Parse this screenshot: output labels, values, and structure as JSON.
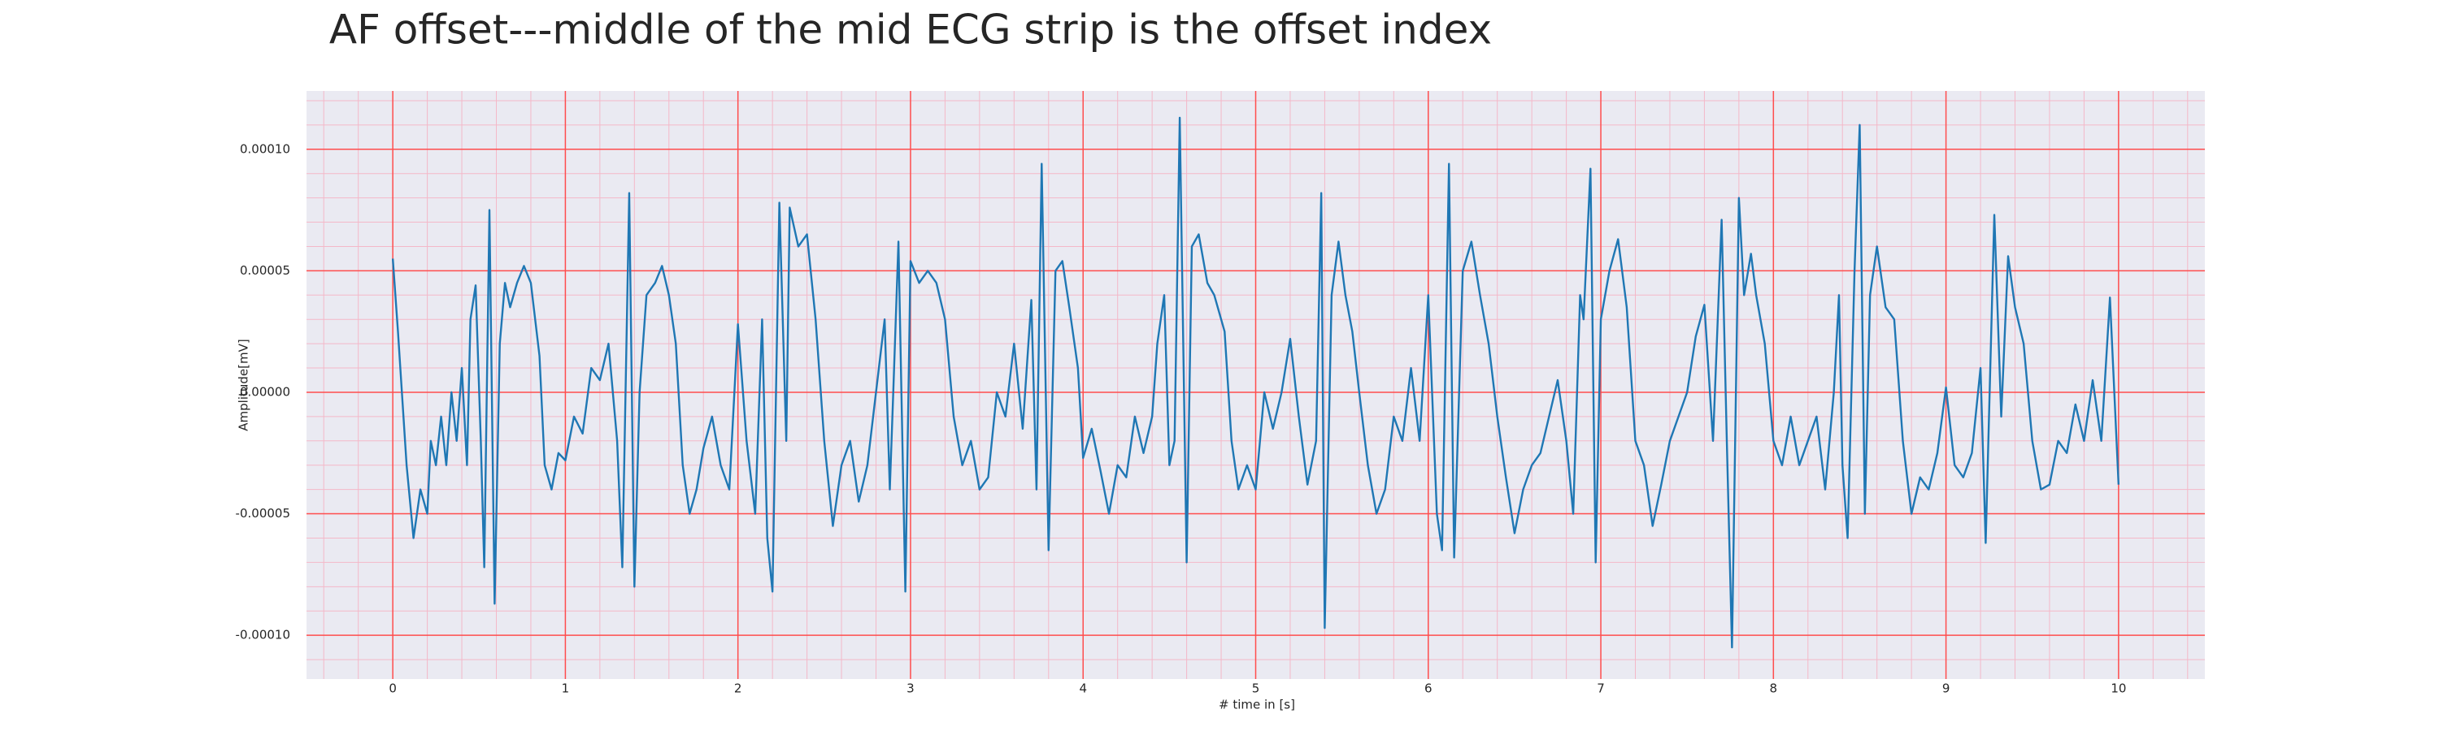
{
  "chart_data": {
    "type": "line",
    "title": "AF offset---middle of the mid ECG strip is the offset index",
    "xlabel": "# time in [s]",
    "ylabel": "Amplitude[mV]",
    "color": "#1f77b4",
    "background": "#eaeaf2",
    "grid": true,
    "grid_color": "#ff4d4d",
    "minor_grid": true,
    "minor_grid_color": "#f4b8c8",
    "xlim": [
      -0.5,
      10.5
    ],
    "xticks": [
      0,
      1,
      2,
      3,
      4,
      5,
      6,
      7,
      8,
      9,
      10
    ],
    "ylim": [
      -0.000118,
      0.000124
    ],
    "yticks": [
      {
        "value": -0.0001,
        "label": "-0.00010"
      },
      {
        "value": -5e-05,
        "label": "-0.00005"
      },
      {
        "value": 0,
        "label": "0.00000"
      },
      {
        "value": 5e-05,
        "label": "0.00005"
      },
      {
        "value": 0.0001,
        "label": "0.00010"
      }
    ],
    "x": [
      0,
      0.03,
      0.08,
      0.12,
      0.16,
      0.2,
      0.22,
      0.25,
      0.28,
      0.31,
      0.34,
      0.37,
      0.4,
      0.43,
      0.45,
      0.48,
      0.51,
      0.53,
      0.56,
      0.59,
      0.62,
      0.65,
      0.68,
      0.72,
      0.76,
      0.8,
      0.85,
      0.88,
      0.92,
      0.96,
      1.0,
      1.05,
      1.1,
      1.15,
      1.2,
      1.25,
      1.3,
      1.33,
      1.37,
      1.4,
      1.43,
      1.47,
      1.52,
      1.56,
      1.6,
      1.64,
      1.68,
      1.72,
      1.76,
      1.8,
      1.85,
      1.9,
      1.95,
      2.0,
      2.05,
      2.1,
      2.14,
      2.17,
      2.2,
      2.24,
      2.28,
      2.3,
      2.35,
      2.4,
      2.45,
      2.5,
      2.55,
      2.6,
      2.65,
      2.7,
      2.75,
      2.8,
      2.85,
      2.88,
      2.9,
      2.93,
      2.97,
      3.0,
      3.05,
      3.1,
      3.15,
      3.2,
      3.25,
      3.3,
      3.35,
      3.4,
      3.45,
      3.5,
      3.55,
      3.6,
      3.65,
      3.7,
      3.73,
      3.76,
      3.8,
      3.84,
      3.88,
      3.92,
      3.97,
      4.0,
      4.05,
      4.1,
      4.15,
      4.2,
      4.25,
      4.3,
      4.35,
      4.4,
      4.43,
      4.47,
      4.5,
      4.53,
      4.56,
      4.6,
      4.63,
      4.67,
      4.72,
      4.76,
      4.82,
      4.86,
      4.9,
      4.95,
      5.0,
      5.05,
      5.1,
      5.15,
      5.2,
      5.25,
      5.3,
      5.35,
      5.38,
      5.4,
      5.44,
      5.48,
      5.52,
      5.56,
      5.6,
      5.65,
      5.7,
      5.75,
      5.8,
      5.85,
      5.9,
      5.95,
      6.0,
      6.05,
      6.08,
      6.12,
      6.15,
      6.2,
      6.25,
      6.3,
      6.35,
      6.4,
      6.45,
      6.5,
      6.55,
      6.6,
      6.65,
      6.7,
      6.75,
      6.8,
      6.84,
      6.88,
      6.9,
      6.94,
      6.97,
      7.0,
      7.05,
      7.1,
      7.15,
      7.2,
      7.25,
      7.3,
      7.35,
      7.4,
      7.45,
      7.5,
      7.55,
      7.6,
      7.65,
      7.7,
      7.73,
      7.76,
      7.8,
      7.83,
      7.87,
      7.9,
      7.95,
      8.0,
      8.05,
      8.1,
      8.15,
      8.2,
      8.25,
      8.3,
      8.35,
      8.38,
      8.4,
      8.43,
      8.47,
      8.5,
      8.53,
      8.56,
      8.6,
      8.65,
      8.7,
      8.75,
      8.8,
      8.85,
      8.9,
      8.95,
      9.0,
      9.05,
      9.1,
      9.15,
      9.2,
      9.23,
      9.28,
      9.32,
      9.36,
      9.4,
      9.45,
      9.5,
      9.55,
      9.6,
      9.65,
      9.7,
      9.75,
      9.8,
      9.85,
      9.9,
      9.95,
      10.0
    ],
    "values": [
      5.5e-05,
      2.5e-05,
      -3e-05,
      -6e-05,
      -4e-05,
      -5e-05,
      -2e-05,
      -3e-05,
      -1e-05,
      -3e-05,
      0,
      -2e-05,
      1e-05,
      -3e-05,
      3e-05,
      4.4e-05,
      -2e-05,
      -7.2e-05,
      7.5e-05,
      -8.7e-05,
      2e-05,
      4.5e-05,
      3.5e-05,
      4.5e-05,
      5.2e-05,
      4.5e-05,
      1.5e-05,
      -3e-05,
      -4e-05,
      -2.5e-05,
      -2.8e-05,
      -1e-05,
      -1.7e-05,
      1e-05,
      5e-06,
      2e-05,
      -2e-05,
      -7.2e-05,
      8.2e-05,
      -8e-05,
      0,
      4e-05,
      4.5e-05,
      5.2e-05,
      4e-05,
      2e-05,
      -3e-05,
      -5e-05,
      -4e-05,
      -2.3e-05,
      -1e-05,
      -3e-05,
      -4e-05,
      2.8e-05,
      -2e-05,
      -5e-05,
      3e-05,
      -6e-05,
      -8.2e-05,
      7.8e-05,
      -2e-05,
      7.6e-05,
      6e-05,
      6.5e-05,
      3e-05,
      -2e-05,
      -5.5e-05,
      -3e-05,
      -2e-05,
      -4.5e-05,
      -3e-05,
      0,
      3e-05,
      -4e-05,
      0,
      6.2e-05,
      -8.2e-05,
      5.4e-05,
      4.5e-05,
      5e-05,
      4.5e-05,
      3e-05,
      -1e-05,
      -3e-05,
      -2e-05,
      -4e-05,
      -3.5e-05,
      0,
      -1e-05,
      2e-05,
      -1.5e-05,
      3.8e-05,
      -4e-05,
      9.4e-05,
      -6.5e-05,
      5e-05,
      5.4e-05,
      3.5e-05,
      1e-05,
      -2.7e-05,
      -1.5e-05,
      -3.2e-05,
      -5e-05,
      -3e-05,
      -3.5e-05,
      -1e-05,
      -2.5e-05,
      -1e-05,
      2e-05,
      4e-05,
      -3e-05,
      -2e-05,
      0.000113,
      -7e-05,
      6e-05,
      6.5e-05,
      4.5e-05,
      4e-05,
      2.5e-05,
      -2e-05,
      -4e-05,
      -3e-05,
      -4e-05,
      0,
      -1.5e-05,
      0,
      2.2e-05,
      -1e-05,
      -3.8e-05,
      -2e-05,
      8.2e-05,
      -9.7e-05,
      4e-05,
      6.2e-05,
      4e-05,
      2.5e-05,
      0,
      -3e-05,
      -5e-05,
      -4e-05,
      -1e-05,
      -2e-05,
      1e-05,
      -2e-05,
      4e-05,
      -5e-05,
      -6.5e-05,
      9.4e-05,
      -6.8e-05,
      5e-05,
      6.2e-05,
      4e-05,
      2e-05,
      -1e-05,
      -3.5e-05,
      -5.8e-05,
      -4e-05,
      -3e-05,
      -2.5e-05,
      -1e-05,
      5e-06,
      -2e-05,
      -5e-05,
      4e-05,
      3e-05,
      9.2e-05,
      -7e-05,
      3e-05,
      5e-05,
      6.3e-05,
      3.5e-05,
      -2e-05,
      -3e-05,
      -5.5e-05,
      -3.8e-05,
      -2e-05,
      -1e-05,
      0,
      2.3e-05,
      3.6e-05,
      -2e-05,
      7.1e-05,
      -2e-05,
      -0.000105,
      8e-05,
      4e-05,
      5.7e-05,
      4e-05,
      2e-05,
      -2e-05,
      -3e-05,
      -1e-05,
      -3e-05,
      -2e-05,
      -1e-05,
      -4e-05,
      0,
      4e-05,
      -3e-05,
      -6e-05,
      5e-05,
      0.00011,
      -5e-05,
      4e-05,
      6e-05,
      3.5e-05,
      3e-05,
      -2e-05,
      -5e-05,
      -3.5e-05,
      -4e-05,
      -2.5e-05,
      2e-06,
      -3e-05,
      -3.5e-05,
      -2.5e-05,
      1e-05,
      -6.2e-05,
      7.3e-05,
      -1e-05,
      5.6e-05,
      3.5e-05,
      2e-05,
      -2e-05,
      -4e-05,
      -3.8e-05,
      -2e-05,
      -2.5e-05,
      -5e-06,
      -2e-05,
      5e-06,
      -2e-05,
      3.9e-05,
      -3.8e-05
    ]
  }
}
